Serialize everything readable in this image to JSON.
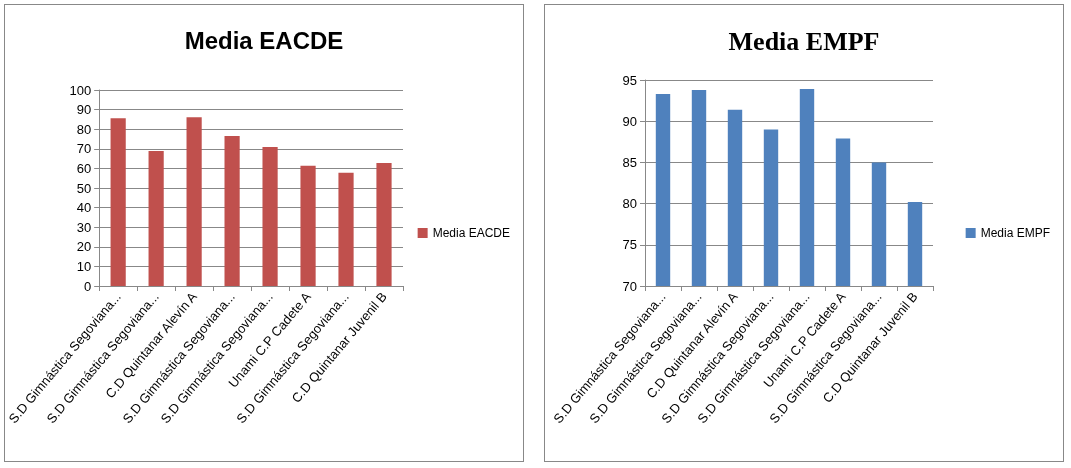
{
  "chart_data": [
    {
      "type": "bar",
      "title": "Media EACDE",
      "categories": [
        "S.D Gimnástica Segoviana...",
        "S.D Gimnástica Segoviana...",
        "C.D Quintanar Alevín A",
        "S.D Gimnástica Segoviana...",
        "S.D Gimnástica Segoviana...",
        "Unami C.P Cadete A",
        "S.D Gimnástica Segoviana...",
        "C.D Quintanar Juvenil B"
      ],
      "series": [
        {
          "name": "Media EACDE",
          "color": "#c0504d",
          "values": [
            85.6,
            68.9,
            86.1,
            76.5,
            70.9,
            61.3,
            57.8,
            62.8
          ]
        }
      ],
      "ylim": [
        0,
        100
      ],
      "yticks": [
        0,
        10,
        20,
        30,
        40,
        50,
        60,
        70,
        80,
        90,
        100
      ],
      "grid": "y",
      "legend": "right"
    },
    {
      "type": "bar",
      "title": "Media EMPF",
      "categories": [
        "S.D Gimnástica Segoviana...",
        "S.D Gimnástica Segoviana...",
        "C.D Quintanar Alevín A",
        "S.D Gimnástica Segoviana...",
        "S.D Gimnástica Segoviana...",
        "Unami C.P Cadete A",
        "S.D Gimnástica Segoviana...",
        "C.D Quintanar Juvenil B"
      ],
      "series": [
        {
          "name": "Media EMPF",
          "color": "#4f81bd",
          "values": [
            93.3,
            93.8,
            91.4,
            89.0,
            93.9,
            87.9,
            85.0,
            80.2
          ]
        }
      ],
      "ylim": [
        70,
        95
      ],
      "yticks": [
        70,
        75,
        80,
        85,
        90,
        95
      ],
      "grid": "y",
      "legend": "right"
    }
  ]
}
